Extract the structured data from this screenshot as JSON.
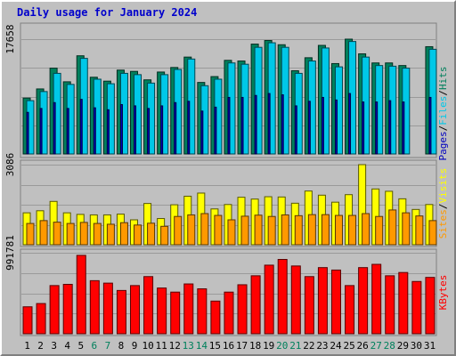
{
  "chart_data": [
    {
      "type": "bar",
      "panel": "hits-files-pages",
      "title": "Daily usage for January 2024",
      "categories": [
        "1",
        "2",
        "3",
        "4",
        "5",
        "6",
        "7",
        "8",
        "9",
        "10",
        "11",
        "12",
        "13",
        "14",
        "15",
        "16",
        "17",
        "18",
        "19",
        "20",
        "21",
        "22",
        "23",
        "24",
        "25",
        "26",
        "27",
        "28",
        "29",
        "30",
        "31"
      ],
      "weekend_days": [
        "6",
        "7",
        "13",
        "14",
        "20",
        "21",
        "27",
        "28"
      ],
      "y_max_label": "17658",
      "ylim": [
        0,
        17658
      ],
      "series": [
        {
          "name": "Hits",
          "color": "#00805c",
          "values": [
            8600,
            10000,
            13200,
            11100,
            15100,
            11800,
            11200,
            12900,
            12700,
            11400,
            12600,
            13300,
            14900,
            11000,
            11900,
            14400,
            14300,
            16900,
            17450,
            16800,
            12800,
            14800,
            16700,
            13900,
            17658,
            15400,
            14000,
            14000,
            13600,
            0,
            16500
          ]
        },
        {
          "name": "Files",
          "color": "#00c8e8",
          "values": [
            8200,
            9600,
            12400,
            10700,
            14700,
            11500,
            10800,
            12400,
            12200,
            10900,
            12200,
            13000,
            14600,
            10500,
            11500,
            14000,
            13800,
            16400,
            17100,
            16400,
            12400,
            14300,
            16300,
            13400,
            17300,
            14900,
            13600,
            13500,
            13200,
            0,
            16100
          ]
        },
        {
          "name": "Pages",
          "color": "#0000c0",
          "values": [
            6400,
            7000,
            7900,
            7000,
            8400,
            7100,
            6800,
            7600,
            7400,
            7000,
            7400,
            7900,
            8100,
            6600,
            7200,
            8700,
            8700,
            9000,
            9300,
            9100,
            7400,
            8100,
            8700,
            8300,
            9300,
            8000,
            8000,
            8200,
            8000,
            0,
            8700
          ]
        }
      ]
    },
    {
      "type": "bar",
      "panel": "visits-sites",
      "categories": [
        "1",
        "2",
        "3",
        "4",
        "5",
        "6",
        "7",
        "8",
        "9",
        "10",
        "11",
        "12",
        "13",
        "14",
        "15",
        "16",
        "17",
        "18",
        "19",
        "20",
        "21",
        "22",
        "23",
        "24",
        "25",
        "26",
        "27",
        "28",
        "29",
        "30",
        "31"
      ],
      "y_max_label": "3086",
      "ylim": [
        0,
        3086
      ],
      "series": [
        {
          "name": "Visits",
          "color": "#ffff00",
          "values": [
            1230,
            1310,
            1670,
            1230,
            1170,
            1150,
            1150,
            1180,
            960,
            1590,
            1010,
            1540,
            1870,
            1990,
            1380,
            1550,
            1830,
            1760,
            1850,
            1840,
            1600,
            2070,
            1910,
            1640,
            1930,
            3086,
            2150,
            2060,
            1770,
            1360,
            1550
          ]
        },
        {
          "name": "Sites",
          "color": "#ff9900",
          "values": [
            820,
            930,
            870,
            820,
            860,
            820,
            790,
            850,
            760,
            830,
            710,
            1090,
            1150,
            1200,
            1130,
            960,
            1100,
            1140,
            1090,
            1150,
            1120,
            1160,
            1160,
            1130,
            1130,
            1200,
            1090,
            1340,
            1230,
            1110,
            930
          ]
        }
      ]
    },
    {
      "type": "bar",
      "panel": "kbytes",
      "categories": [
        "1",
        "2",
        "3",
        "4",
        "5",
        "6",
        "7",
        "8",
        "9",
        "10",
        "11",
        "12",
        "13",
        "14",
        "15",
        "16",
        "17",
        "18",
        "19",
        "20",
        "21",
        "22",
        "23",
        "24",
        "25",
        "26",
        "27",
        "28",
        "29",
        "30",
        "31"
      ],
      "y_max_label": "991781",
      "ylim": [
        0,
        991781
      ],
      "series": [
        {
          "name": "KBytes",
          "color": "#ff0000",
          "values": [
            330000,
            370000,
            590000,
            605000,
            960000,
            650000,
            620000,
            530000,
            590000,
            700000,
            560000,
            510000,
            610000,
            550000,
            400000,
            510000,
            600000,
            710000,
            840000,
            910000,
            830000,
            700000,
            810000,
            780000,
            590000,
            810000,
            850000,
            710000,
            750000,
            640000,
            690000
          ]
        }
      ]
    }
  ]
}
